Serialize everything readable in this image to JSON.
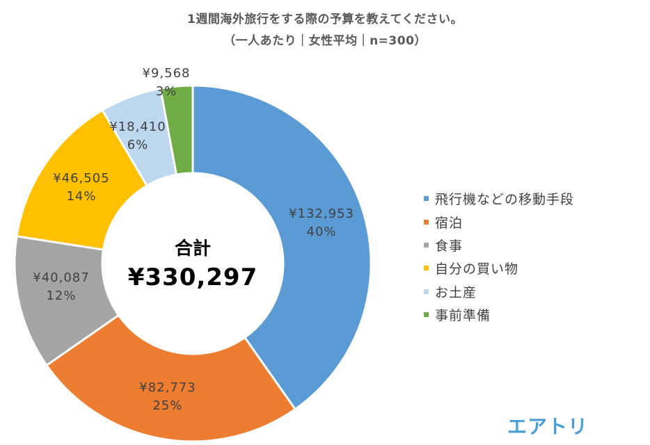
{
  "header": {
    "title_line1": "1週間海外旅行をする際の予算を教えてください。",
    "title_line2": "（一人あたり｜女性平均｜n=300）"
  },
  "center": {
    "label": "合計",
    "value": "¥330,297"
  },
  "brand": {
    "logo_text": "エアトリ"
  },
  "chart_data": {
    "type": "pie",
    "variant": "donut",
    "title": "1週間海外旅行をする際の予算を教えてください。（一人あたり｜女性平均｜n=300）",
    "categories": [
      "飛行機などの移動手段",
      "宿泊",
      "食事",
      "自分の買い物",
      "お土産",
      "事前準備"
    ],
    "values": [
      132953,
      82773,
      40087,
      46505,
      18410,
      9568
    ],
    "value_labels": [
      "¥132,953",
      "¥82,773",
      "¥40,087",
      "¥46,505",
      "¥18,410",
      "¥9,568"
    ],
    "percent_labels": [
      "40%",
      "25%",
      "12%",
      "14%",
      "6%",
      "3%"
    ],
    "colors": [
      "#5b9bd5",
      "#ed7d31",
      "#a5a5a5",
      "#ffc000",
      "#bdd7ee",
      "#70ad47"
    ],
    "total": 330297,
    "total_label": "¥330,297",
    "start_angle_deg": 0,
    "direction": "clockwise",
    "legend_position": "right"
  }
}
